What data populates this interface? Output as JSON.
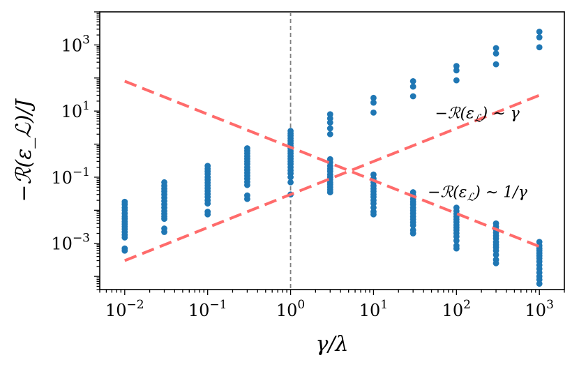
{
  "chart_data": {
    "type": "scatter",
    "xscale": "log",
    "yscale": "log",
    "xlim": [
      0.005,
      2000
    ],
    "ylim": [
      4e-05,
      10000
    ],
    "xlabel": "γ/λ",
    "ylabel": "−ℛ(ε_ℒ)/J",
    "x_ticks": [
      {
        "value": 0.01,
        "base": "10",
        "exp": "−2"
      },
      {
        "value": 0.1,
        "base": "10",
        "exp": "−1"
      },
      {
        "value": 1,
        "base": "10",
        "exp": "0"
      },
      {
        "value": 10,
        "base": "10",
        "exp": "1"
      },
      {
        "value": 100,
        "base": "10",
        "exp": "2"
      },
      {
        "value": 1000,
        "base": "10",
        "exp": "3"
      }
    ],
    "y_ticks": [
      {
        "value": 0.001,
        "base": "10",
        "exp": "−3"
      },
      {
        "value": 0.1,
        "base": "10",
        "exp": "−1"
      },
      {
        "value": 10,
        "base": "10",
        "exp": "1"
      },
      {
        "value": 1000,
        "base": "10",
        "exp": "3"
      }
    ],
    "vline": {
      "x": 1,
      "color": "#808080",
      "style": "dashed"
    },
    "fits": [
      {
        "name": "−ℛ(ε_ℒ) ~ γ",
        "x": [
          0.01,
          1000
        ],
        "y": [
          0.0003,
          30
        ],
        "color": "#ff6b6b"
      },
      {
        "name": "−ℛ(ε_ℒ) ~ 1/γ",
        "x": [
          0.01,
          1000
        ],
        "y": [
          80,
          0.0008
        ],
        "color": "#ff6b6b"
      }
    ],
    "annotations": [
      {
        "text_main": "−ℛ(ε",
        "text_sub": "ℒ",
        "text_tail": ") ∼ γ",
        "x": 55,
        "y": 6
      },
      {
        "text_main": "−ℛ(ε",
        "text_sub": "ℒ",
        "text_tail": ") ∼ 1/γ",
        "x": 45,
        "y": 0.025
      }
    ],
    "series": [
      {
        "name": "samples",
        "color": "#1f77b4",
        "points": [
          [
            0.01,
            0.018
          ],
          [
            0.01,
            0.015
          ],
          [
            0.01,
            0.012
          ],
          [
            0.01,
            0.01
          ],
          [
            0.01,
            0.008
          ],
          [
            0.01,
            0.0065
          ],
          [
            0.01,
            0.0055
          ],
          [
            0.01,
            0.0045
          ],
          [
            0.01,
            0.0038
          ],
          [
            0.01,
            0.0032
          ],
          [
            0.01,
            0.0027
          ],
          [
            0.01,
            0.0022
          ],
          [
            0.01,
            0.0018
          ],
          [
            0.01,
            0.0015
          ],
          [
            0.01,
            0.0007
          ],
          [
            0.01,
            0.0006
          ],
          [
            0.03,
            0.07
          ],
          [
            0.03,
            0.055
          ],
          [
            0.03,
            0.045
          ],
          [
            0.03,
            0.037
          ],
          [
            0.03,
            0.03
          ],
          [
            0.03,
            0.024
          ],
          [
            0.03,
            0.019
          ],
          [
            0.03,
            0.015
          ],
          [
            0.03,
            0.012
          ],
          [
            0.03,
            0.0095
          ],
          [
            0.03,
            0.0078
          ],
          [
            0.03,
            0.0065
          ],
          [
            0.03,
            0.0055
          ],
          [
            0.03,
            0.0028
          ],
          [
            0.03,
            0.0022
          ],
          [
            0.1,
            0.22
          ],
          [
            0.1,
            0.18
          ],
          [
            0.1,
            0.15
          ],
          [
            0.1,
            0.125
          ],
          [
            0.1,
            0.1
          ],
          [
            0.1,
            0.083
          ],
          [
            0.1,
            0.068
          ],
          [
            0.1,
            0.056
          ],
          [
            0.1,
            0.046
          ],
          [
            0.1,
            0.038
          ],
          [
            0.1,
            0.031
          ],
          [
            0.1,
            0.025
          ],
          [
            0.1,
            0.02
          ],
          [
            0.1,
            0.016
          ],
          [
            0.1,
            0.009
          ],
          [
            0.1,
            0.0075
          ],
          [
            0.3,
            0.75
          ],
          [
            0.3,
            0.63
          ],
          [
            0.3,
            0.52
          ],
          [
            0.3,
            0.43
          ],
          [
            0.3,
            0.36
          ],
          [
            0.3,
            0.3
          ],
          [
            0.3,
            0.25
          ],
          [
            0.3,
            0.2
          ],
          [
            0.3,
            0.165
          ],
          [
            0.3,
            0.135
          ],
          [
            0.3,
            0.11
          ],
          [
            0.3,
            0.09
          ],
          [
            0.3,
            0.072
          ],
          [
            0.3,
            0.058
          ],
          [
            0.3,
            0.028
          ],
          [
            0.3,
            0.022
          ],
          [
            1,
            2.5
          ],
          [
            1,
            2.1
          ],
          [
            1,
            1.8
          ],
          [
            1,
            1.5
          ],
          [
            1,
            1.25
          ],
          [
            1,
            1.05
          ],
          [
            1,
            0.88
          ],
          [
            1,
            0.74
          ],
          [
            1,
            0.62
          ],
          [
            1,
            0.52
          ],
          [
            1,
            0.43
          ],
          [
            1,
            0.36
          ],
          [
            1,
            0.3
          ],
          [
            1,
            0.25
          ],
          [
            1,
            0.2
          ],
          [
            1,
            0.16
          ],
          [
            1,
            0.13
          ],
          [
            1,
            0.1
          ],
          [
            1,
            0.07
          ],
          [
            1,
            0.03
          ],
          [
            3,
            8
          ],
          [
            3,
            6
          ],
          [
            3,
            4.5
          ],
          [
            3,
            3
          ],
          [
            3,
            2
          ],
          [
            3,
            0.35
          ],
          [
            3,
            0.28
          ],
          [
            3,
            0.22
          ],
          [
            3,
            0.18
          ],
          [
            3,
            0.15
          ],
          [
            3,
            0.12
          ],
          [
            3,
            0.1
          ],
          [
            3,
            0.085
          ],
          [
            3,
            0.07
          ],
          [
            3,
            0.06
          ],
          [
            3,
            0.05
          ],
          [
            3,
            0.042
          ],
          [
            3,
            0.035
          ],
          [
            10,
            25
          ],
          [
            10,
            18
          ],
          [
            10,
            9
          ],
          [
            10,
            0.12
          ],
          [
            10,
            0.09
          ],
          [
            10,
            0.07
          ],
          [
            10,
            0.055
          ],
          [
            10,
            0.045
          ],
          [
            10,
            0.037
          ],
          [
            10,
            0.03
          ],
          [
            10,
            0.025
          ],
          [
            10,
            0.02
          ],
          [
            10,
            0.016
          ],
          [
            10,
            0.012
          ],
          [
            10,
            0.009
          ],
          [
            10,
            0.0075
          ],
          [
            30,
            80
          ],
          [
            30,
            55
          ],
          [
            30,
            28
          ],
          [
            30,
            0.035
          ],
          [
            30,
            0.028
          ],
          [
            30,
            0.022
          ],
          [
            30,
            0.018
          ],
          [
            30,
            0.015
          ],
          [
            30,
            0.012
          ],
          [
            30,
            0.0098
          ],
          [
            30,
            0.008
          ],
          [
            30,
            0.0065
          ],
          [
            30,
            0.0053
          ],
          [
            30,
            0.0043
          ],
          [
            30,
            0.0035
          ],
          [
            30,
            0.0025
          ],
          [
            30,
            0.002
          ],
          [
            100,
            230
          ],
          [
            100,
            170
          ],
          [
            100,
            85
          ],
          [
            100,
            0.012
          ],
          [
            100,
            0.0095
          ],
          [
            100,
            0.0078
          ],
          [
            100,
            0.0064
          ],
          [
            100,
            0.0053
          ],
          [
            100,
            0.0044
          ],
          [
            100,
            0.0036
          ],
          [
            100,
            0.003
          ],
          [
            100,
            0.0025
          ],
          [
            100,
            0.002
          ],
          [
            100,
            0.0016
          ],
          [
            100,
            0.0012
          ],
          [
            100,
            0.00085
          ],
          [
            100,
            0.0007
          ],
          [
            300,
            800
          ],
          [
            300,
            550
          ],
          [
            300,
            260
          ],
          [
            300,
            0.004
          ],
          [
            300,
            0.0032
          ],
          [
            300,
            0.0026
          ],
          [
            300,
            0.0021
          ],
          [
            300,
            0.0017
          ],
          [
            300,
            0.0014
          ],
          [
            300,
            0.0011
          ],
          [
            300,
            0.0009
          ],
          [
            300,
            0.00075
          ],
          [
            300,
            0.0006
          ],
          [
            300,
            0.00045
          ],
          [
            300,
            0.00032
          ],
          [
            300,
            0.00025
          ],
          [
            1000,
            2500
          ],
          [
            1000,
            1700
          ],
          [
            1000,
            850
          ],
          [
            1000,
            0.0011
          ],
          [
            1000,
            0.00085
          ],
          [
            1000,
            0.0007
          ],
          [
            1000,
            0.0006
          ],
          [
            1000,
            0.0005
          ],
          [
            1000,
            0.00042
          ],
          [
            1000,
            0.00035
          ],
          [
            1000,
            0.00028
          ],
          [
            1000,
            0.00022
          ],
          [
            1000,
            0.00017
          ],
          [
            1000,
            0.00013
          ],
          [
            1000,
            0.0001
          ],
          [
            1000,
            8e-05
          ],
          [
            1000,
            6e-05
          ]
        ]
      }
    ]
  }
}
